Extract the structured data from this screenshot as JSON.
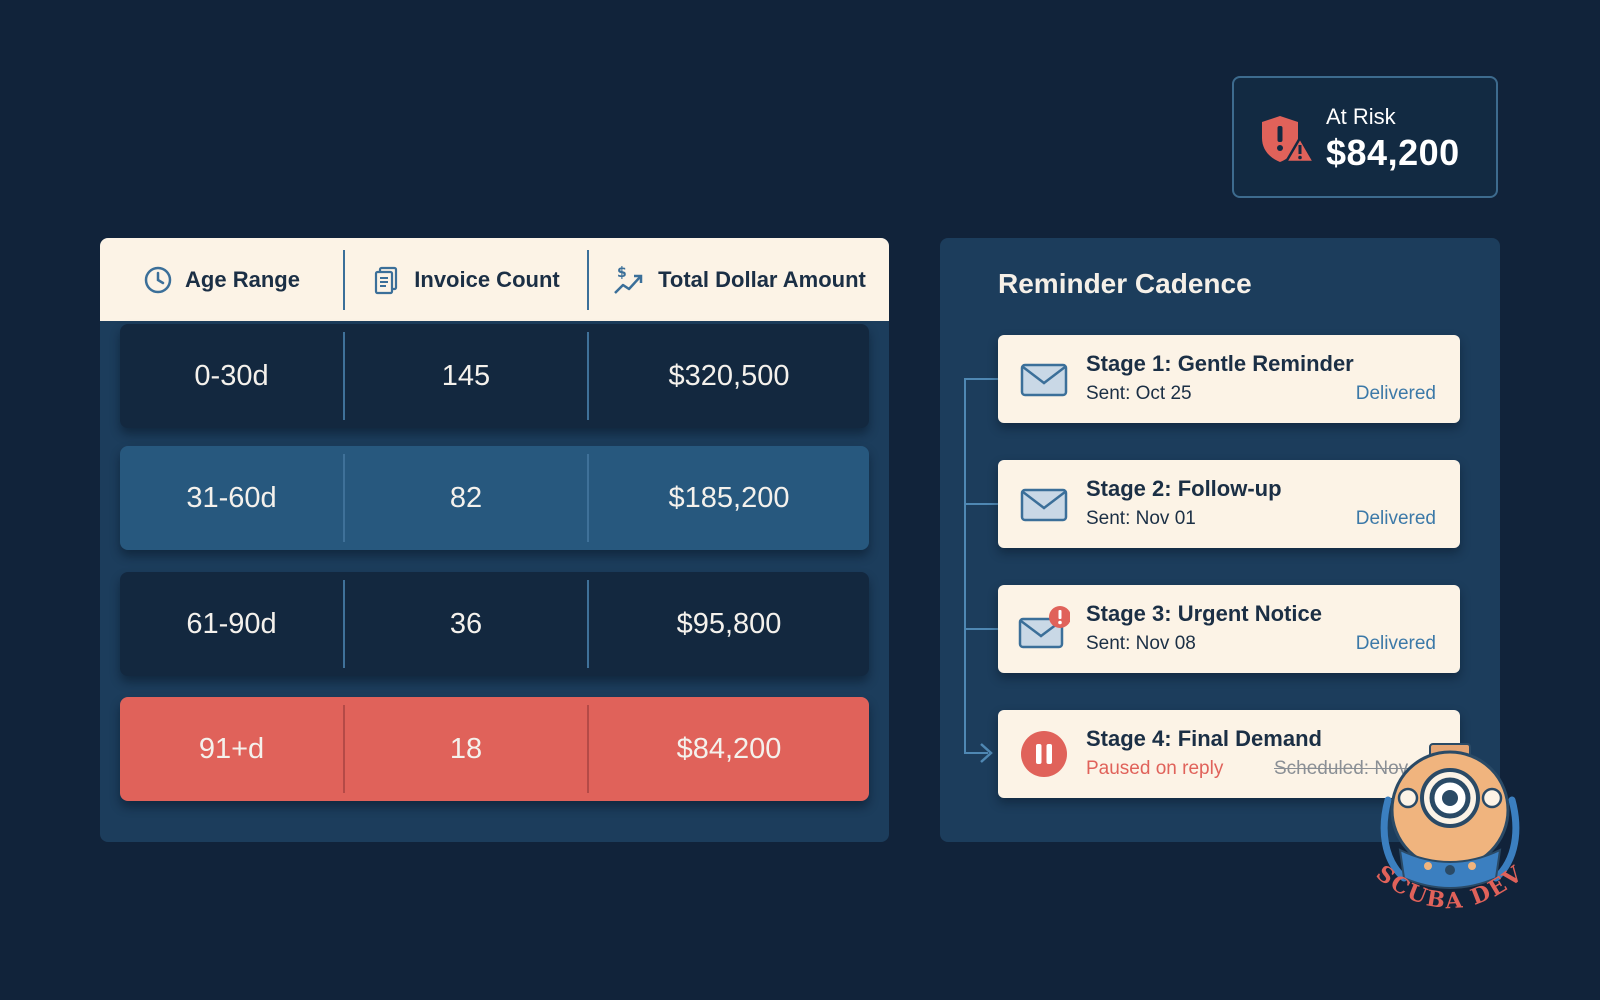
{
  "risk": {
    "label": "At Risk",
    "value": "$84,200",
    "icon": "shield-warning-icon",
    "icon_color": "#e0625a"
  },
  "aging": {
    "columns": [
      {
        "label": "Age Range",
        "icon": "clock-icon"
      },
      {
        "label": "Invoice Count",
        "icon": "document-icon"
      },
      {
        "label": "Total Dollar Amount",
        "icon": "dollar-trend-icon"
      }
    ],
    "rows": [
      {
        "range": "0-30d",
        "count": "145",
        "amount": "$320,500",
        "style": "dark"
      },
      {
        "range": "31-60d",
        "count": "82",
        "amount": "$185,200",
        "style": "mid"
      },
      {
        "range": "61-90d",
        "count": "36",
        "amount": "$95,800",
        "style": "dark"
      },
      {
        "range": "91+d",
        "count": "18",
        "amount": "$84,200",
        "style": "red"
      }
    ]
  },
  "reminders": {
    "title": "Reminder Cadence",
    "stages": [
      {
        "title": "Stage 1: Gentle Reminder",
        "sent": "Sent: Oct 25",
        "status": "Delivered",
        "icon": "envelope-icon"
      },
      {
        "title": "Stage 2: Follow-up",
        "sent": "Sent: Nov 01",
        "status": "Delivered",
        "icon": "envelope-icon"
      },
      {
        "title": "Stage 3: Urgent Notice",
        "sent": "Sent: Nov 08",
        "status": "Delivered",
        "icon": "envelope-alert-icon"
      },
      {
        "title": "Stage 4: Final Demand",
        "paused": "Paused on reply",
        "scheduled": "Scheduled: Nov 15",
        "icon": "pause-icon"
      }
    ]
  },
  "logo": {
    "text": "SCUBA DEV",
    "icon": "diving-helmet-logo"
  },
  "colors": {
    "background": "#11233a",
    "panel": "#1c3d5c",
    "cream": "#fcf3e6",
    "accent_red": "#e0625a",
    "accent_blue": "#3c79a8"
  }
}
